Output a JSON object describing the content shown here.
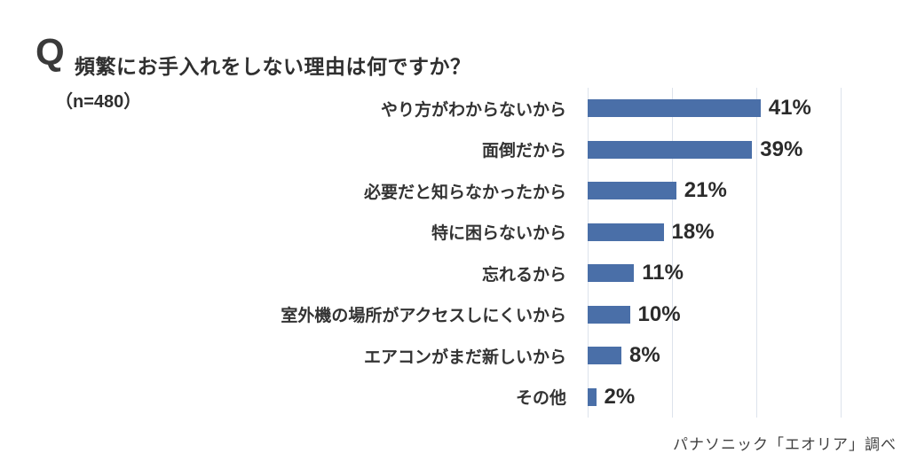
{
  "header": {
    "q_label": "Q",
    "title": "頻繁にお手入れをしない理由は何ですか？",
    "sample_size": "（n=480）"
  },
  "footer": {
    "source": "パナソニック「エオリア」調べ"
  },
  "chart_data": {
    "type": "bar",
    "orientation": "horizontal",
    "title": "頻繁にお手入れをしない理由は何ですか？",
    "subtitle": "（n=480）",
    "categories": [
      "やり方がわからないから",
      "面倒だから",
      "必要だと知らなかったから",
      "特に困らないから",
      "忘れるから",
      "室外機の場所がアクセスしにくいから",
      "エアコンがまだ新しいから",
      "その他"
    ],
    "values": [
      41,
      39,
      21,
      18,
      11,
      10,
      8,
      2
    ],
    "value_labels": [
      "41%",
      "39%",
      "21%",
      "18%",
      "11%",
      "10%",
      "8%",
      "2%"
    ],
    "unit": "%",
    "xlim": [
      0,
      60
    ],
    "gridline_interval": 20,
    "grid": true,
    "legend": "none",
    "bar_color": "#4a6fa8",
    "grid_color": "#dde3ec",
    "source": "パナソニック「エオリア」調べ"
  }
}
